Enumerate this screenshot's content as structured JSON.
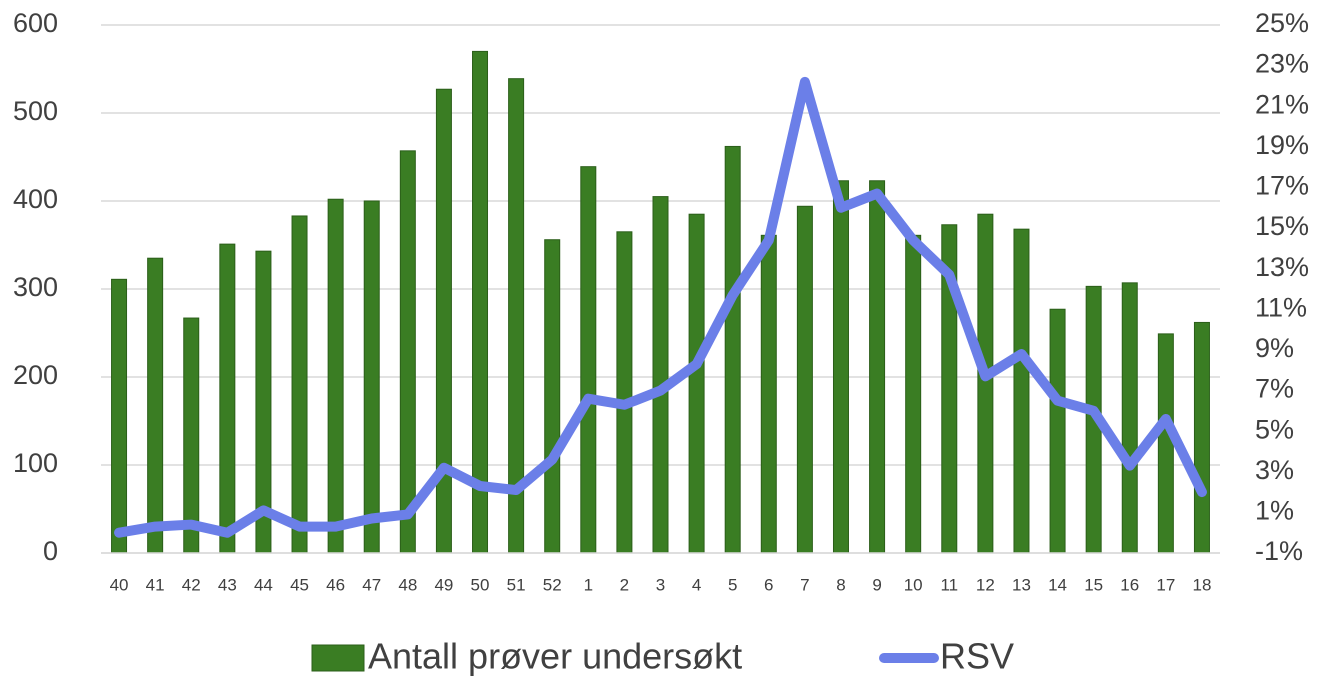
{
  "chart_data": {
    "type": "bar_line",
    "categories": [
      "40",
      "41",
      "42",
      "43",
      "44",
      "45",
      "46",
      "47",
      "48",
      "49",
      "50",
      "51",
      "52",
      "1",
      "2",
      "3",
      "4",
      "5",
      "6",
      "7",
      "8",
      "9",
      "10",
      "11",
      "12",
      "13",
      "14",
      "15",
      "16",
      "17",
      "18"
    ],
    "series": [
      {
        "name": "Antall prøver undersøkt",
        "type": "bar",
        "color": "#3a7d23",
        "values": [
          311,
          335,
          267,
          351,
          343,
          383,
          402,
          400,
          457,
          527,
          570,
          539,
          356,
          439,
          365,
          405,
          385,
          462,
          361,
          394,
          423,
          423,
          361,
          373,
          385,
          368,
          277,
          303,
          307,
          249,
          262
        ]
      },
      {
        "name": "RSV",
        "type": "line",
        "axis": "y2",
        "color": "#6b7fe8",
        "values": [
          0.0,
          0.3,
          0.4,
          0.0,
          1.1,
          0.3,
          0.3,
          0.7,
          0.9,
          3.2,
          2.3,
          2.1,
          3.6,
          6.6,
          6.3,
          7.0,
          8.3,
          11.7,
          14.4,
          22.2,
          16.0,
          16.7,
          14.4,
          12.7,
          7.7,
          8.8,
          6.5,
          6.0,
          3.3,
          5.6,
          2.0
        ]
      }
    ],
    "ylim": [
      0,
      600
    ],
    "yticks": [
      0,
      100,
      200,
      300,
      400,
      500,
      600
    ],
    "y2lim": [
      -1,
      25
    ],
    "y2ticks": [
      {
        "value": -1,
        "label": "-1%"
      },
      {
        "value": 1,
        "label": "1%"
      },
      {
        "value": 3,
        "label": "3%"
      },
      {
        "value": 5,
        "label": "5%"
      },
      {
        "value": 7,
        "label": "7%"
      },
      {
        "value": 9,
        "label": "9%"
      },
      {
        "value": 11,
        "label": "11%"
      },
      {
        "value": 13,
        "label": "13%"
      },
      {
        "value": 15,
        "label": "15%"
      },
      {
        "value": 17,
        "label": "17%"
      },
      {
        "value": 19,
        "label": "19%"
      },
      {
        "value": 21,
        "label": "21%"
      },
      {
        "value": 23,
        "label": "23%"
      },
      {
        "value": 25,
        "label": "25%"
      }
    ],
    "grid": true,
    "legend": "bottom"
  }
}
